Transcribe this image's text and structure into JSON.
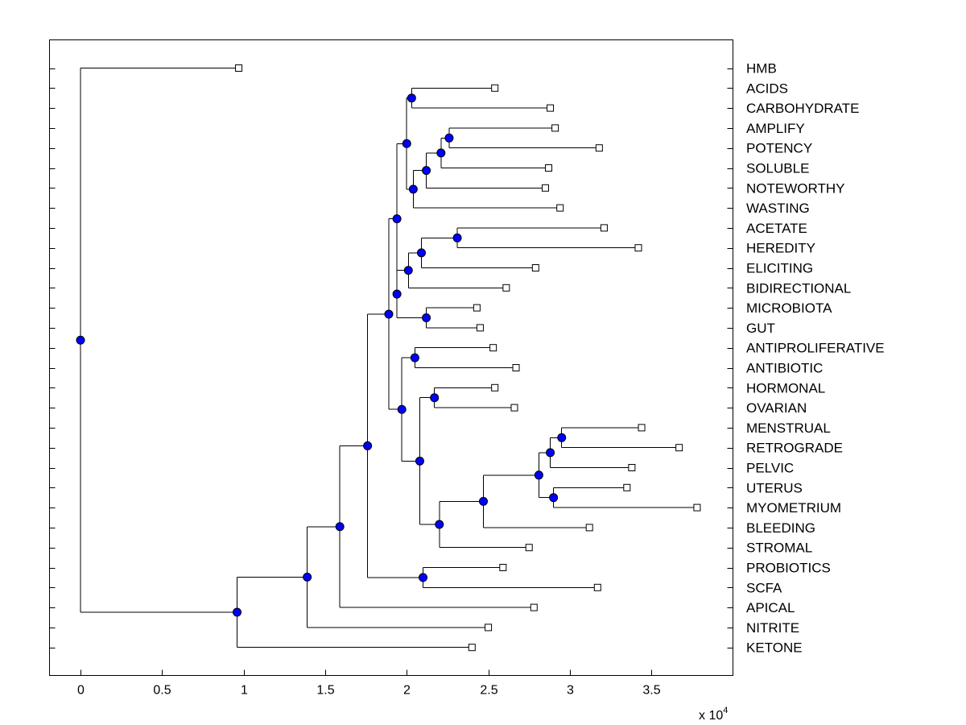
{
  "chart_data": {
    "type": "dendrogram",
    "title": "",
    "xlabel": "",
    "ylabel": "",
    "x_multiplier_label": "x 10",
    "x_multiplier_exponent": "4",
    "xlim": [
      -0.19,
      4.0
    ],
    "xticks": [
      0,
      0.5,
      1,
      1.5,
      2,
      2.5,
      3,
      3.5
    ],
    "xtick_labels": [
      "0",
      "0.5",
      "1",
      "1.5",
      "2",
      "2.5",
      "3",
      "3.5"
    ],
    "leaf_color": "#ffffff",
    "node_color": "#0000ff",
    "leaves": [
      {
        "id": "HMB",
        "label": "HMB",
        "x": 0.97
      },
      {
        "id": "ACIDS",
        "label": "ACIDS",
        "x": 2.54
      },
      {
        "id": "CARBOHYDRATE",
        "label": "CARBOHYDRATE",
        "x": 2.88
      },
      {
        "id": "AMPLIFY",
        "label": "AMPLIFY",
        "x": 2.91
      },
      {
        "id": "POTENCY",
        "label": "POTENCY",
        "x": 3.18
      },
      {
        "id": "SOLUBLE",
        "label": "SOLUBLE",
        "x": 2.87
      },
      {
        "id": "NOTEWORTHY",
        "label": "NOTEWORTHY",
        "x": 2.85
      },
      {
        "id": "WASTING",
        "label": "WASTING",
        "x": 2.94
      },
      {
        "id": "ACETATE",
        "label": "ACETATE",
        "x": 3.21
      },
      {
        "id": "HEREDITY",
        "label": "HEREDITY",
        "x": 3.42
      },
      {
        "id": "ELICITING",
        "label": "ELICITING",
        "x": 2.79
      },
      {
        "id": "BIDIRECTIONAL",
        "label": "BIDIRECTIONAL",
        "x": 2.61
      },
      {
        "id": "MICROBIOTA",
        "label": "MICROBIOTA",
        "x": 2.43
      },
      {
        "id": "GUT",
        "label": "GUT",
        "x": 2.45
      },
      {
        "id": "ANTIPROLIFERATIVE",
        "label": "ANTIPROLIFERATIVE",
        "x": 2.53
      },
      {
        "id": "ANTIBIOTIC",
        "label": "ANTIBIOTIC",
        "x": 2.67
      },
      {
        "id": "HORMONAL",
        "label": "HORMONAL",
        "x": 2.54
      },
      {
        "id": "OVARIAN",
        "label": "OVARIAN",
        "x": 2.66
      },
      {
        "id": "MENSTRUAL",
        "label": "MENSTRUAL",
        "x": 3.44
      },
      {
        "id": "RETROGRADE",
        "label": "RETROGRADE",
        "x": 3.67
      },
      {
        "id": "PELVIC",
        "label": "PELVIC",
        "x": 3.38
      },
      {
        "id": "UTERUS",
        "label": "UTERUS",
        "x": 3.35
      },
      {
        "id": "MYOMETRIUM",
        "label": "MYOMETRIUM",
        "x": 3.78
      },
      {
        "id": "BLEEDING",
        "label": "BLEEDING",
        "x": 3.12
      },
      {
        "id": "STROMAL",
        "label": "STROMAL",
        "x": 2.75
      },
      {
        "id": "PROBIOTICS",
        "label": "PROBIOTICS",
        "x": 2.59
      },
      {
        "id": "SCFA",
        "label": "SCFA",
        "x": 3.17
      },
      {
        "id": "APICAL",
        "label": "APICAL",
        "x": 2.78
      },
      {
        "id": "NITRITE",
        "label": "NITRITE",
        "x": 2.5
      },
      {
        "id": "KETONE",
        "label": "KETONE",
        "x": 2.4
      }
    ],
    "nodes": [
      {
        "id": "n1",
        "x": 2.03,
        "children": [
          "ACIDS",
          "CARBOHYDRATE"
        ]
      },
      {
        "id": "n2",
        "x": 2.26,
        "children": [
          "AMPLIFY",
          "POTENCY"
        ]
      },
      {
        "id": "n3",
        "x": 2.21,
        "children": [
          "n2",
          "SOLUBLE"
        ]
      },
      {
        "id": "n4",
        "x": 2.12,
        "children": [
          "n3",
          "NOTEWORTHY"
        ]
      },
      {
        "id": "n5",
        "x": 2.04,
        "children": [
          "n4",
          "WASTING"
        ]
      },
      {
        "id": "n6",
        "x": 2.0,
        "children": [
          "n1",
          "n5"
        ]
      },
      {
        "id": "n7",
        "x": 2.31,
        "children": [
          "ACETATE",
          "HEREDITY"
        ]
      },
      {
        "id": "n8",
        "x": 2.09,
        "children": [
          "n7",
          "ELICITING"
        ]
      },
      {
        "id": "n9",
        "x": 2.01,
        "children": [
          "n8",
          "BIDIRECTIONAL"
        ]
      },
      {
        "id": "n10",
        "x": 2.12,
        "children": [
          "MICROBIOTA",
          "GUT"
        ]
      },
      {
        "id": "n11",
        "x": 1.94,
        "children": [
          "n9",
          "n10"
        ]
      },
      {
        "id": "n12",
        "x": 1.94,
        "children": [
          "n6",
          "n11"
        ]
      },
      {
        "id": "n13",
        "x": 2.05,
        "children": [
          "ANTIPROLIFERATIVE",
          "ANTIBIOTIC"
        ]
      },
      {
        "id": "n14",
        "x": 2.17,
        "children": [
          "HORMONAL",
          "OVARIAN"
        ]
      },
      {
        "id": "n15",
        "x": 2.95,
        "children": [
          "MENSTRUAL",
          "RETROGRADE"
        ]
      },
      {
        "id": "n16",
        "x": 2.88,
        "children": [
          "n15",
          "PELVIC"
        ]
      },
      {
        "id": "n17",
        "x": 2.9,
        "children": [
          "UTERUS",
          "MYOMETRIUM"
        ]
      },
      {
        "id": "n18",
        "x": 2.81,
        "children": [
          "n16",
          "n17"
        ]
      },
      {
        "id": "n19",
        "x": 2.47,
        "children": [
          "n18",
          "BLEEDING"
        ]
      },
      {
        "id": "n20",
        "x": 2.2,
        "children": [
          "n19",
          "STROMAL"
        ]
      },
      {
        "id": "n21",
        "x": 2.08,
        "children": [
          "n14",
          "n20"
        ]
      },
      {
        "id": "n22",
        "x": 1.97,
        "children": [
          "n13",
          "n21"
        ]
      },
      {
        "id": "n23",
        "x": 1.89,
        "children": [
          "n12",
          "n22"
        ]
      },
      {
        "id": "n24",
        "x": 2.1,
        "children": [
          "PROBIOTICS",
          "SCFA"
        ]
      },
      {
        "id": "n25",
        "x": 1.76,
        "children": [
          "n23",
          "n24"
        ]
      },
      {
        "id": "n26",
        "x": 1.59,
        "children": [
          "n25",
          "APICAL"
        ]
      },
      {
        "id": "n27",
        "x": 1.39,
        "children": [
          "n26",
          "NITRITE"
        ]
      },
      {
        "id": "n28",
        "x": 0.96,
        "children": [
          "n27",
          "KETONE"
        ]
      },
      {
        "id": "n29",
        "x": 0.0,
        "children": [
          "HMB",
          "n28"
        ]
      }
    ]
  }
}
